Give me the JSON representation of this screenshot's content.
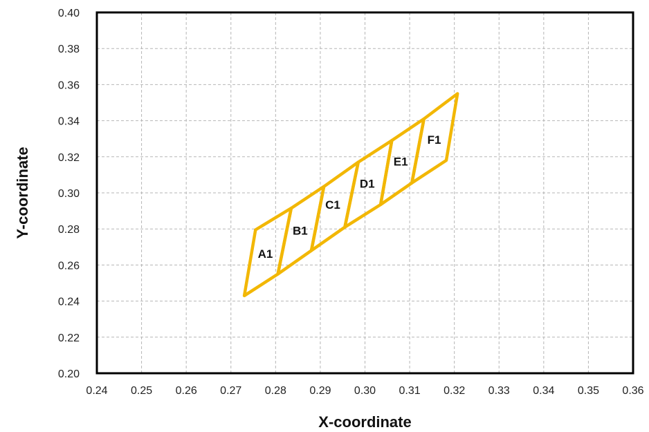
{
  "chart_data": {
    "type": "line",
    "xlabel": "X-coordinate",
    "ylabel": "Y-coordinate",
    "xlim": [
      0.24,
      0.36
    ],
    "ylim": [
      0.2,
      0.4
    ],
    "x_ticks": [
      "0.24",
      "0.25",
      "0.26",
      "0.27",
      "0.28",
      "0.29",
      "0.30",
      "0.31",
      "0.32",
      "0.33",
      "0.34",
      "0.35",
      "0.36"
    ],
    "y_ticks": [
      "0.40",
      "0.38",
      "0.36",
      "0.34",
      "0.32",
      "0.30",
      "0.28",
      "0.26",
      "0.24",
      "0.22",
      "0.20"
    ],
    "grid": true,
    "line_color": "#f2b705",
    "regions": [
      {
        "label": "A1",
        "points": [
          [
            0.273,
            0.243
          ],
          [
            0.2755,
            0.2795
          ],
          [
            0.2835,
            0.2915
          ],
          [
            0.2805,
            0.255
          ]
        ],
        "label_at": [
          0.2777,
          0.2662
        ]
      },
      {
        "label": "B1",
        "points": [
          [
            0.2805,
            0.255
          ],
          [
            0.2835,
            0.2915
          ],
          [
            0.2908,
            0.3035
          ],
          [
            0.288,
            0.268
          ]
        ],
        "label_at": [
          0.2855,
          0.2792
        ]
      },
      {
        "label": "C1",
        "points": [
          [
            0.288,
            0.268
          ],
          [
            0.2908,
            0.3035
          ],
          [
            0.2985,
            0.317
          ],
          [
            0.2955,
            0.281
          ]
        ],
        "label_at": [
          0.2928,
          0.2935
        ]
      },
      {
        "label": "D1",
        "points": [
          [
            0.2955,
            0.281
          ],
          [
            0.2985,
            0.317
          ],
          [
            0.306,
            0.329
          ],
          [
            0.3035,
            0.2935
          ]
        ],
        "label_at": [
          0.3005,
          0.3052
        ]
      },
      {
        "label": "E1",
        "points": [
          [
            0.3035,
            0.2935
          ],
          [
            0.306,
            0.329
          ],
          [
            0.3132,
            0.341
          ],
          [
            0.3105,
            0.3055
          ]
        ],
        "label_at": [
          0.308,
          0.3175
        ]
      },
      {
        "label": "F1",
        "points": [
          [
            0.3105,
            0.3055
          ],
          [
            0.3132,
            0.341
          ],
          [
            0.3207,
            0.355
          ],
          [
            0.3182,
            0.318
          ]
        ],
        "label_at": [
          0.3155,
          0.3295
        ]
      }
    ]
  }
}
